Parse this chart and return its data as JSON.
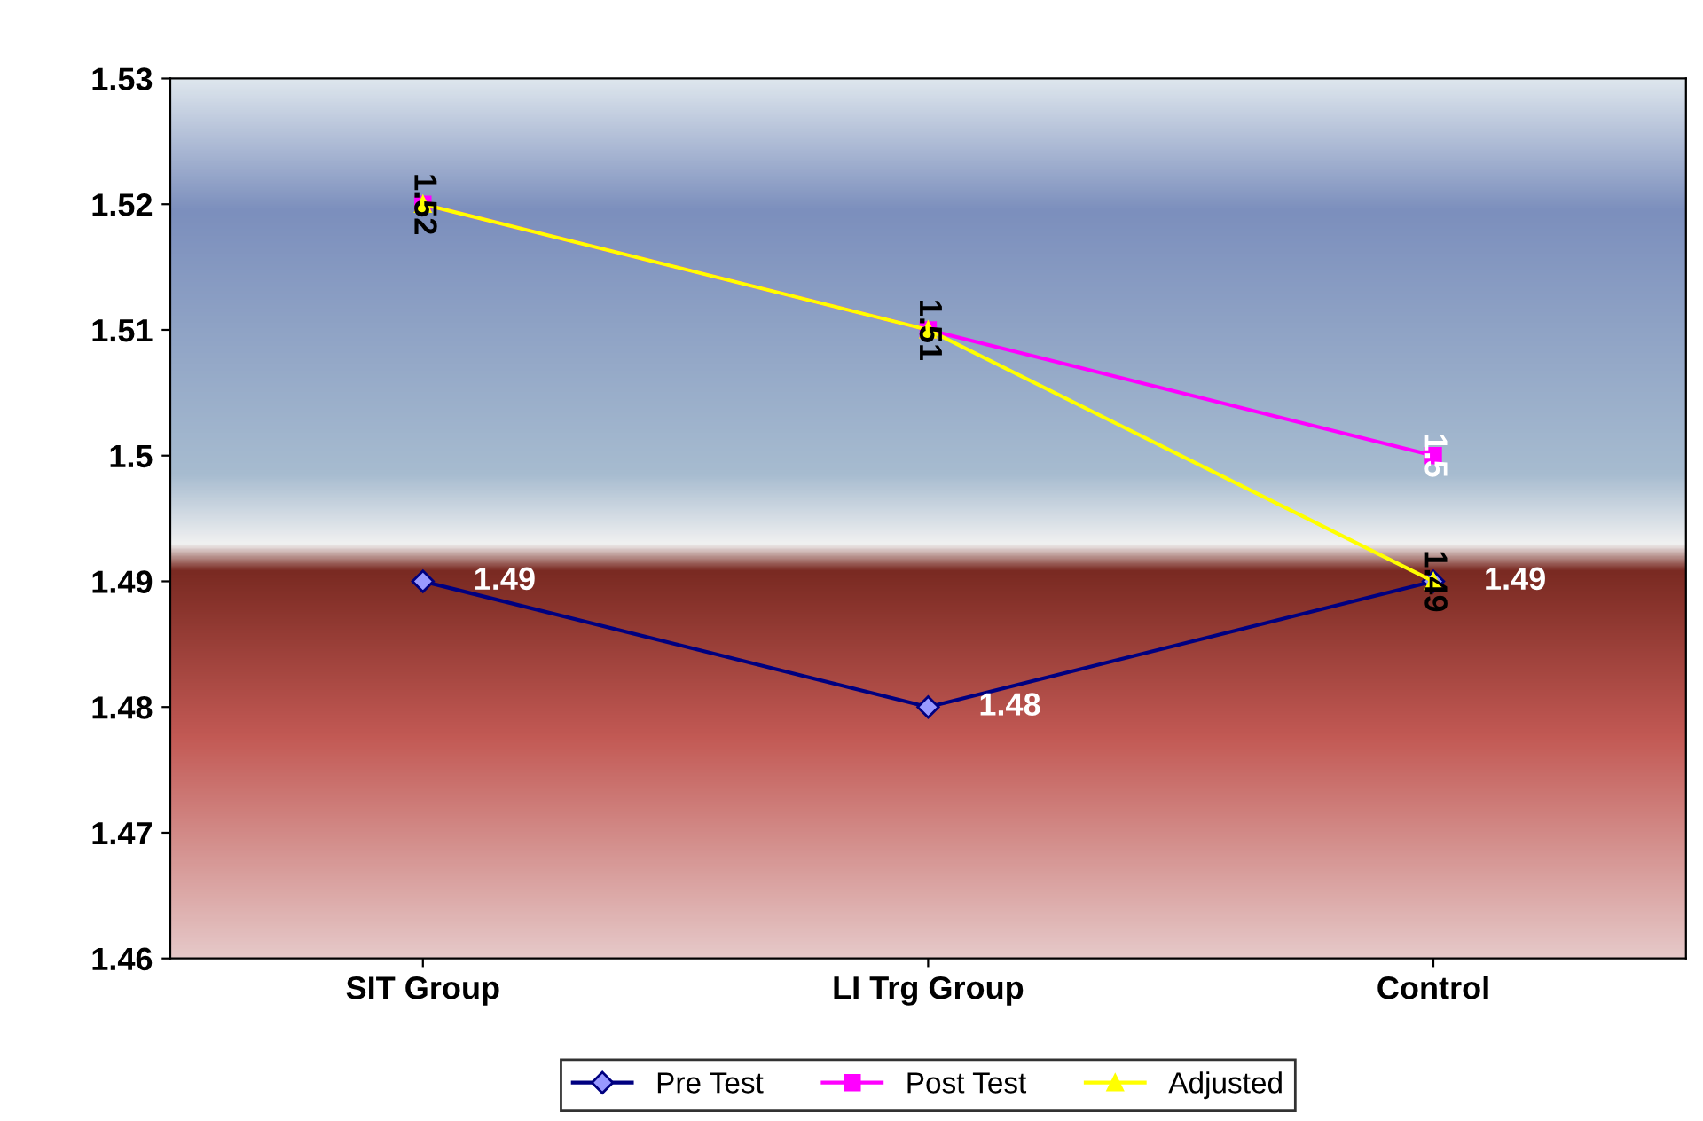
{
  "chart_data": {
    "type": "line",
    "categories": [
      "SIT Group",
      "LI Trg Group",
      "Control"
    ],
    "series": [
      {
        "name": "Pre Test",
        "color": "#000080",
        "marker": "diamond",
        "values": [
          1.49,
          1.48,
          1.49
        ],
        "value_labels": [
          "1.49",
          "1.48",
          "1.49"
        ]
      },
      {
        "name": "Post Test",
        "color": "#ff00ff",
        "marker": "square",
        "values": [
          1.52,
          1.51,
          1.5
        ],
        "value_labels": [
          "1.52",
          "1.51",
          "1.5"
        ]
      },
      {
        "name": "Adjusted",
        "color": "#ffff00",
        "marker": "triangle",
        "values": [
          1.52,
          1.51,
          1.49
        ],
        "value_labels": [
          null,
          null,
          "1.49"
        ]
      }
    ],
    "ylim": [
      1.46,
      1.53
    ],
    "yticks": [
      1.46,
      1.47,
      1.48,
      1.49,
      1.5,
      1.51,
      1.52,
      1.53
    ],
    "grid": false,
    "legend": "bottom",
    "line_style": "solid"
  }
}
